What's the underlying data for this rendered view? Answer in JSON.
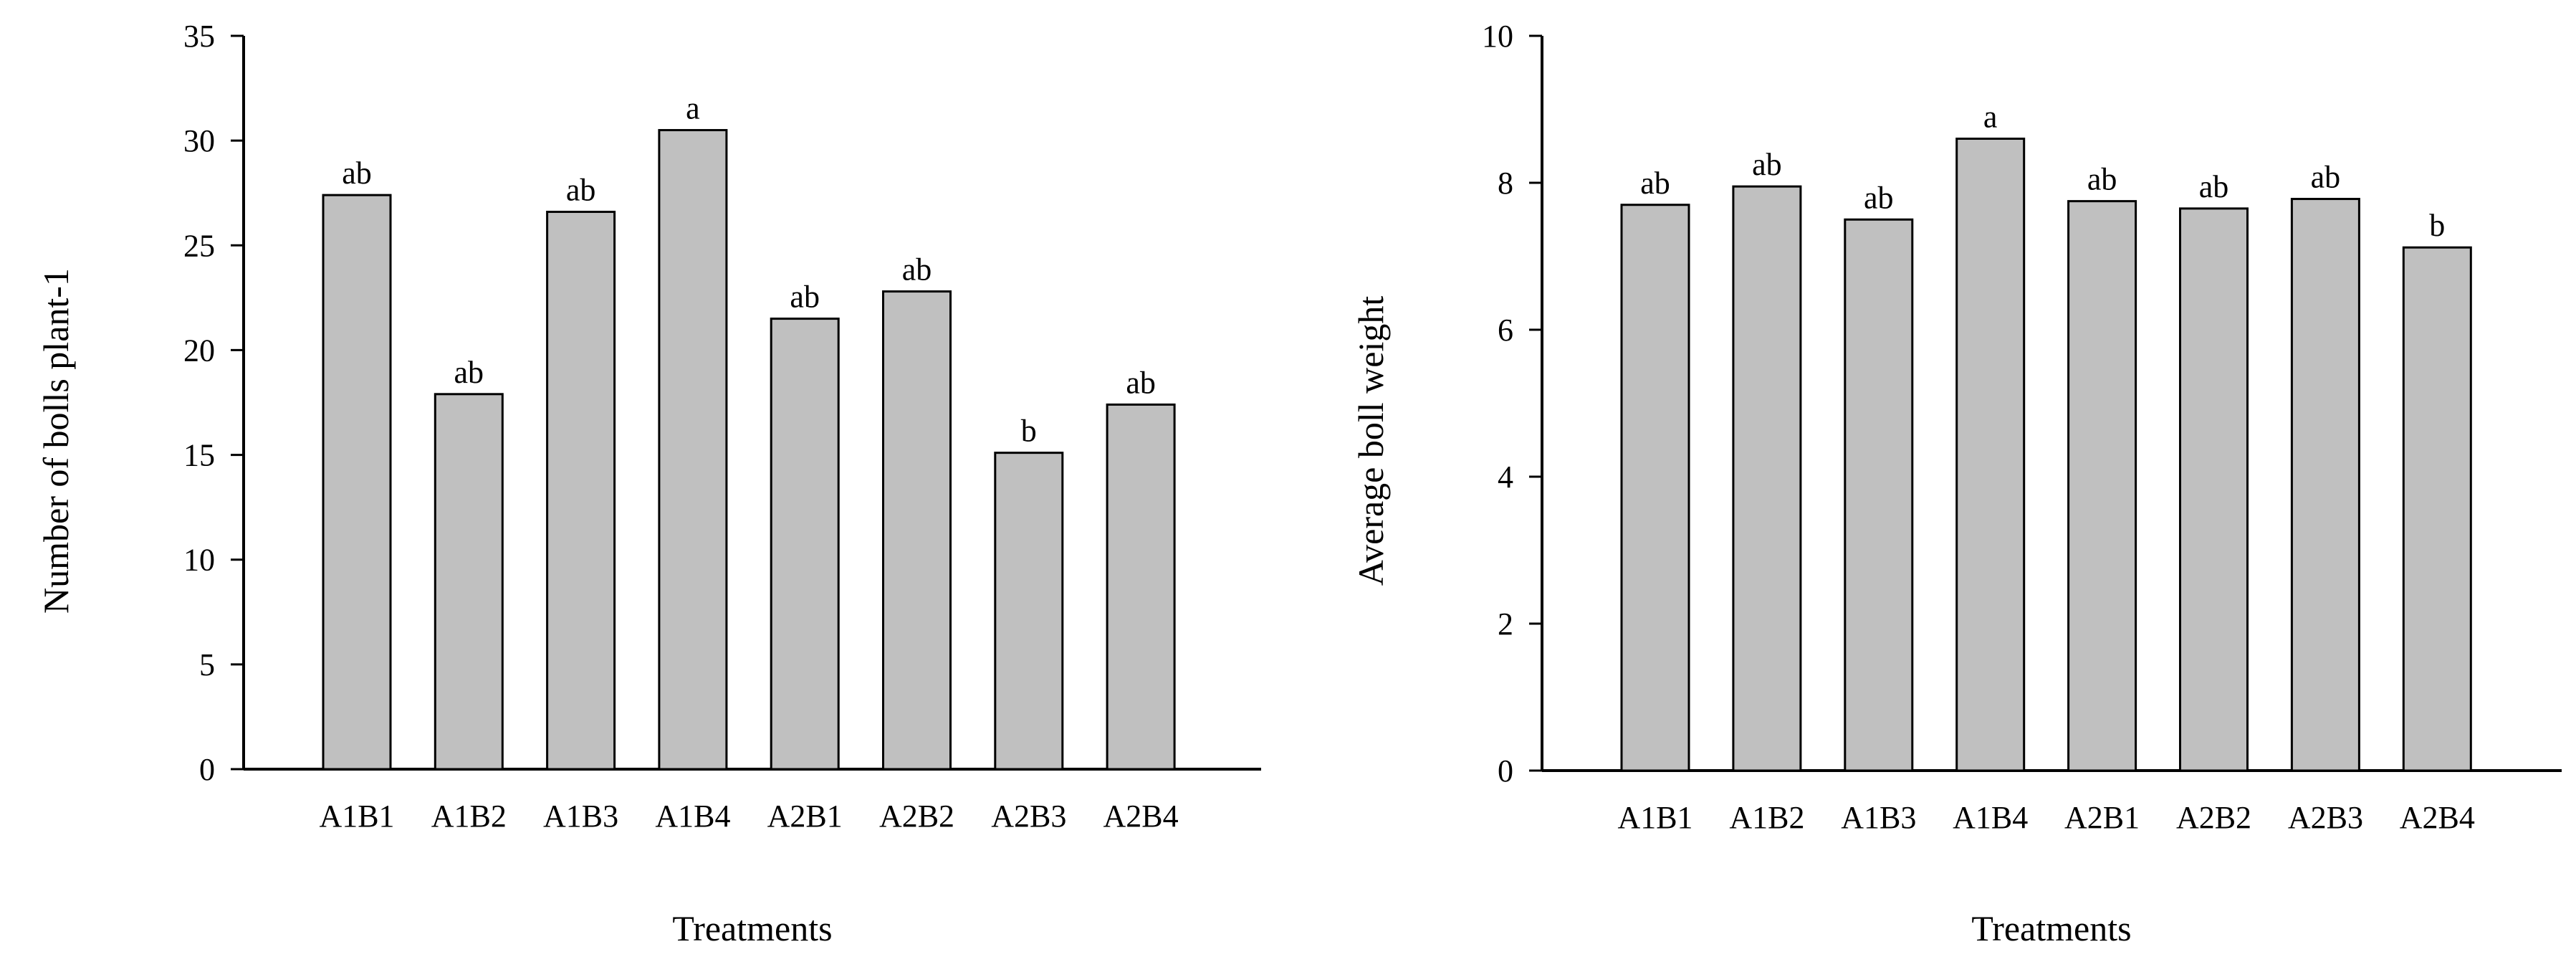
{
  "chart_data": [
    {
      "type": "bar",
      "categories": [
        "A1B1",
        "A1B2",
        "A1B3",
        "A1B4",
        "A2B1",
        "A2B2",
        "A2B3",
        "A2B4"
      ],
      "values": [
        27.4,
        17.9,
        26.6,
        30.5,
        21.5,
        22.8,
        15.1,
        17.4
      ],
      "significance": [
        "ab",
        "ab",
        "ab",
        "a",
        "ab",
        "ab",
        "b",
        "ab"
      ],
      "yticks": [
        "0",
        "5",
        "10",
        "15",
        "20",
        "25",
        "30",
        "35"
      ],
      "ylim": [
        0,
        35
      ],
      "xlabel": "Treatments",
      "ylabel": "Number of bolls plant-1",
      "bar_color": "#c0c0c0",
      "grid": false
    },
    {
      "type": "bar",
      "categories": [
        "A1B1",
        "A1B2",
        "A1B3",
        "A1B4",
        "A2B1",
        "A2B2",
        "A2B3",
        "A2B4"
      ],
      "values": [
        7.7,
        7.95,
        7.5,
        8.6,
        7.75,
        7.65,
        7.78,
        7.12
      ],
      "significance": [
        "ab",
        "ab",
        "ab",
        "a",
        "ab",
        "ab",
        "ab",
        "b"
      ],
      "yticks": [
        "0",
        "2",
        "4",
        "6",
        "8",
        "10"
      ],
      "ylim": [
        0,
        10
      ],
      "xlabel": "Treatments",
      "ylabel": "Average boll weight",
      "bar_color": "#c0c0c0",
      "grid": false
    }
  ]
}
